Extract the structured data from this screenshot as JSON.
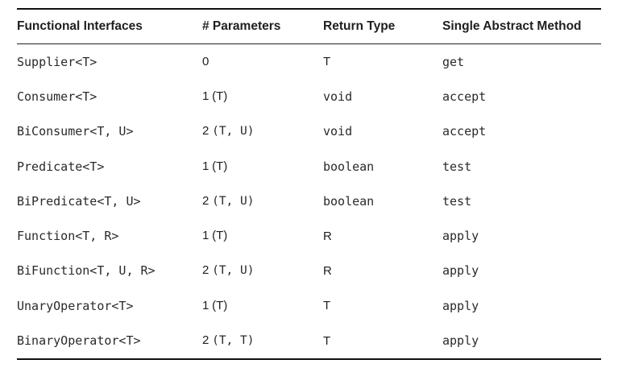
{
  "table": {
    "headers": [
      "Functional Interfaces",
      "# Parameters",
      "Return Type",
      "Single Abstract Method"
    ],
    "rows": [
      {
        "interface": "Supplier<T>",
        "params_count": "0",
        "params_types": "",
        "return_type": "T",
        "method": "get"
      },
      {
        "interface": "Consumer<T>",
        "params_count": "1",
        "params_types": "(T)",
        "return_type": "void",
        "method": "accept"
      },
      {
        "interface": "BiConsumer<T, U>",
        "params_count": "2",
        "params_types": "(T, U)",
        "return_type": "void",
        "method": "accept"
      },
      {
        "interface": "Predicate<T>",
        "params_count": "1",
        "params_types": "(T)",
        "return_type": "boolean",
        "method": "test"
      },
      {
        "interface": "BiPredicate<T, U>",
        "params_count": "2",
        "params_types": "(T, U)",
        "return_type": "boolean",
        "method": "test"
      },
      {
        "interface": "Function<T, R>",
        "params_count": "1",
        "params_types": "(T)",
        "return_type": "R",
        "method": "apply"
      },
      {
        "interface": "BiFunction<T, U, R>",
        "params_count": "2",
        "params_types": "(T, U)",
        "return_type": "R",
        "method": "apply"
      },
      {
        "interface": "UnaryOperator<T>",
        "params_count": "1",
        "params_types": "(T)",
        "return_type": "T",
        "method": "apply"
      },
      {
        "interface": "BinaryOperator<T>",
        "params_count": "2",
        "params_types": "(T, T)",
        "return_type": "T",
        "method": "apply"
      }
    ]
  }
}
